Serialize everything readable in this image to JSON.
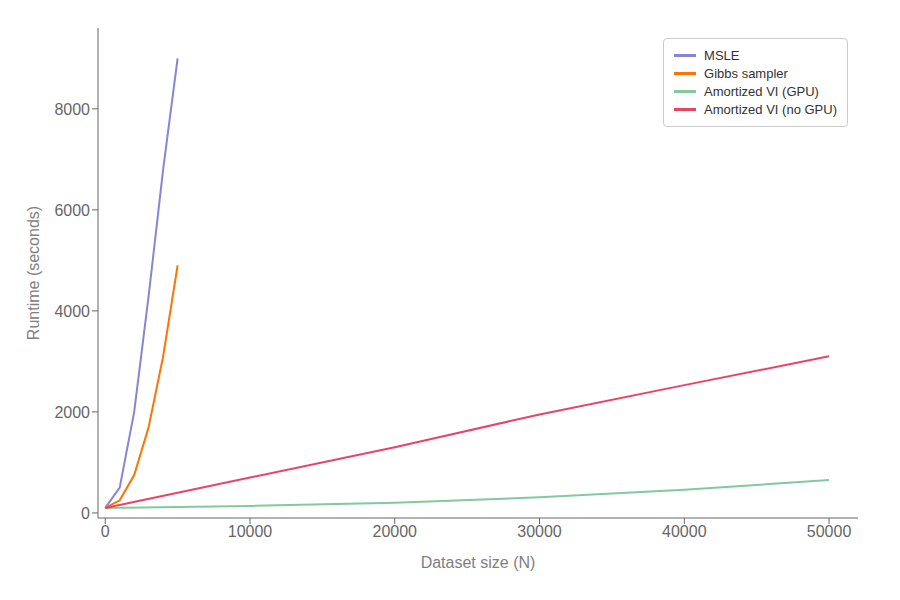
{
  "chart_data": {
    "type": "line",
    "xlabel": "Dataset size (N)",
    "ylabel": "Runtime (seconds)",
    "series": [
      {
        "name": "MSLE",
        "x": [
          0,
          1000,
          2000,
          3000,
          4000,
          5000
        ],
        "values": [
          100,
          500,
          2000,
          4300,
          6800,
          9000
        ]
      },
      {
        "name": "Gibbs sampler",
        "x": [
          0,
          1000,
          2000,
          3000,
          4000,
          5000
        ],
        "values": [
          100,
          250,
          750,
          1700,
          3100,
          4900
        ]
      },
      {
        "name": "Amortized VI (GPU)",
        "x": [
          0,
          10000,
          20000,
          30000,
          40000,
          50000
        ],
        "values": [
          100,
          140,
          200,
          310,
          460,
          650
        ]
      },
      {
        "name": "Amortized VI (no GPU)",
        "x": [
          0,
          10000,
          20000,
          30000,
          40000,
          50000
        ],
        "values": [
          100,
          700,
          1300,
          1950,
          2530,
          3100
        ]
      }
    ],
    "xlim": [
      -500,
      52000
    ],
    "ylim": [
      -100,
      9600
    ],
    "xticks": [
      0,
      10000,
      20000,
      30000,
      40000,
      50000
    ],
    "yticks": [
      0,
      2000,
      4000,
      6000,
      8000
    ],
    "grid": false,
    "legend": "upper right"
  }
}
